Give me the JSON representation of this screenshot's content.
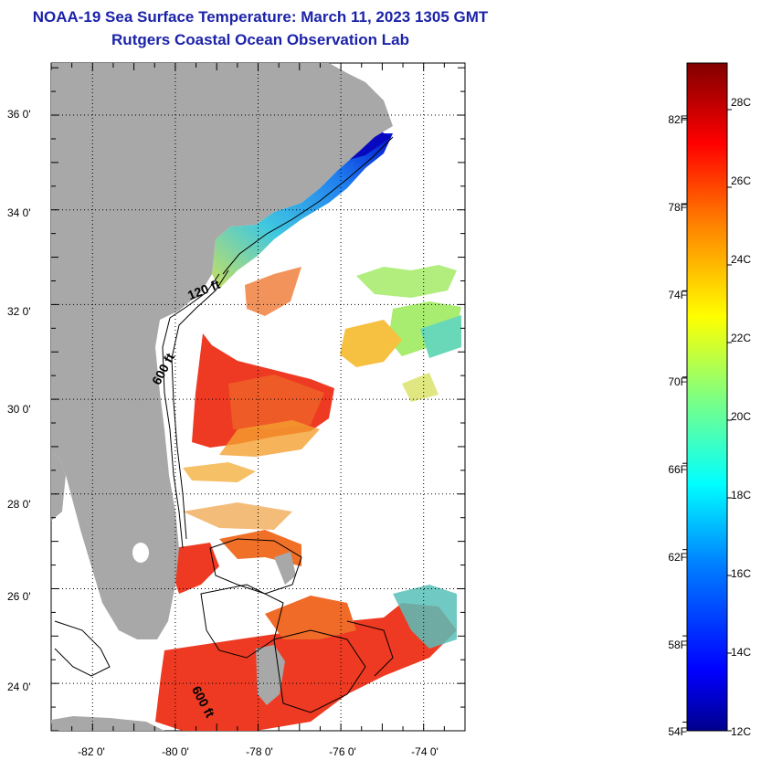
{
  "title": "NOAA-19 Sea Surface Temperature:  March 11, 2023 1305 GMT",
  "subtitle": "Rutgers Coastal Ocean Observation Lab",
  "map": {
    "lat_labels": [
      "36 0'",
      "34 0'",
      "32 0'",
      "30 0'",
      "28 0'",
      "26 0'",
      "24 0'"
    ],
    "lat_values": [
      36,
      34,
      32,
      30,
      28,
      26,
      24
    ],
    "lon_labels": [
      "-82 0'",
      "-80 0'",
      "-78 0'",
      "-76 0'",
      "-74 0'"
    ],
    "lon_values": [
      -82,
      -80,
      -78,
      -76,
      -74
    ],
    "lat_range": [
      23,
      37.1
    ],
    "lon_range": [
      -83,
      -73
    ],
    "grid": "dotted",
    "land_color": "#a8a8a8",
    "depth_contours": [
      "120 ft",
      "600 ft",
      "600 ft"
    ]
  },
  "colorbar": {
    "fahrenheit_labels": [
      "82F",
      "78F",
      "74F",
      "70F",
      "66F",
      "62F",
      "58F",
      "54F"
    ],
    "celsius_labels": [
      "28C",
      "26C",
      "24C",
      "22C",
      "20C",
      "18C",
      "16C",
      "14C",
      "12C"
    ],
    "range_c": [
      12,
      29.2
    ],
    "colors": [
      "#00008c",
      "#0000ff",
      "#0080ff",
      "#00ffff",
      "#80ff80",
      "#ffff00",
      "#ff8000",
      "#ff0000",
      "#800000"
    ]
  }
}
